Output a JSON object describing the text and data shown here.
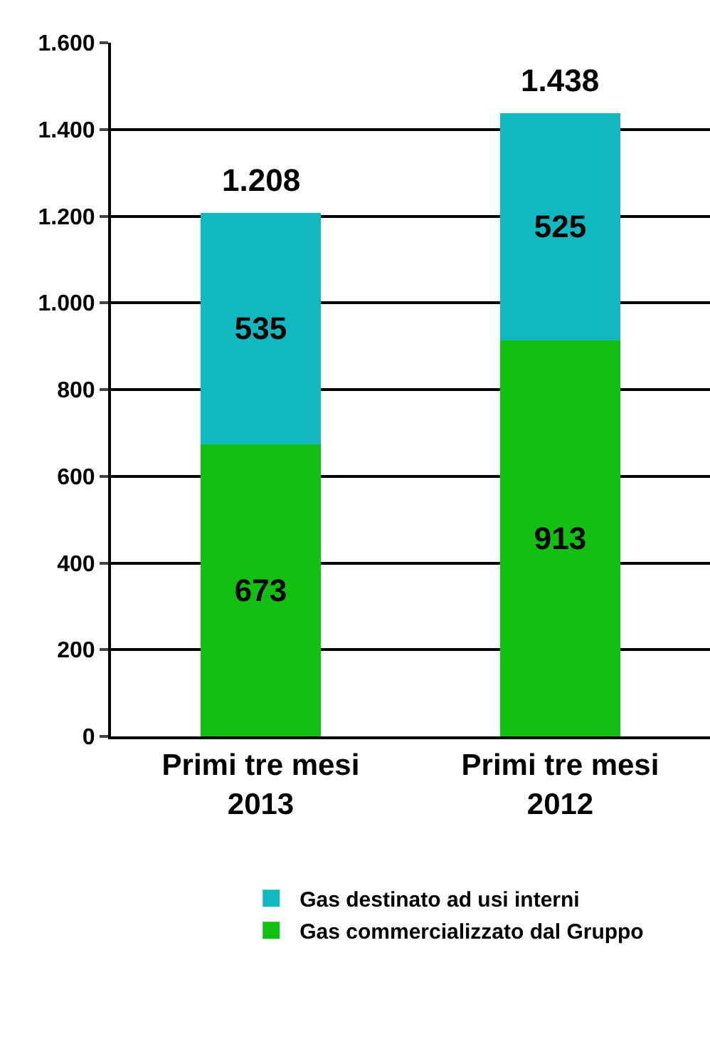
{
  "chart_data": {
    "type": "bar",
    "stacked": true,
    "categories": [
      "Primi tre mesi\n2013",
      "Primi tre mesi\n2012"
    ],
    "series": [
      {
        "name": "Gas commercializzato dal Gruppo",
        "color": "#11c011",
        "values": [
          673,
          913
        ]
      },
      {
        "name": "Gas destinato ad usi interni",
        "color": "#11b8c0",
        "values": [
          535,
          525
        ]
      }
    ],
    "totals": [
      "1.208",
      "1.438"
    ],
    "data_labels": true,
    "ylim": [
      0,
      1600
    ],
    "yticks": [
      0,
      200,
      400,
      600,
      800,
      {
        "value": 1000,
        "label": "1.000"
      },
      {
        "value": 1200,
        "label": "1.200"
      },
      {
        "value": 1400,
        "label": "1.400"
      },
      {
        "value": 1600,
        "label": "1.600"
      }
    ],
    "grid": "y",
    "legend": "bottom"
  }
}
